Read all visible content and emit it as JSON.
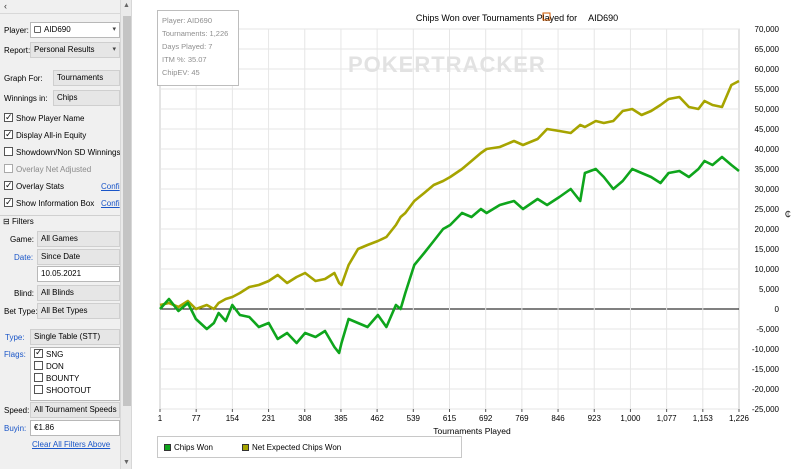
{
  "sidebar": {
    "player_label": "Player:",
    "player_value": "AID690",
    "report_label": "Report:",
    "report_value": "Personal Results",
    "graph_for_label": "Graph For:",
    "graph_for_value": "Tournaments",
    "winnings_in_label": "Winnings in:",
    "winnings_in_value": "Chips",
    "options": [
      {
        "label": "Show Player Name",
        "checked": true,
        "enabled": true
      },
      {
        "label": "Display All-in Equity",
        "checked": true,
        "enabled": true
      },
      {
        "label": "Showdown/Non SD Winnings",
        "checked": false,
        "enabled": true
      },
      {
        "label": "Overlay Net Adjusted",
        "checked": false,
        "enabled": false
      },
      {
        "label": "Overlay Stats",
        "checked": true,
        "enabled": true,
        "link": "Confi"
      },
      {
        "label": "Show Information Box",
        "checked": true,
        "enabled": true,
        "link": "Confi"
      }
    ],
    "filters_header": "Filters",
    "game_label": "Game:",
    "game_value": "All Games",
    "date_label": "Date:",
    "date_value": "Since Date",
    "date_input": "10.05.2021",
    "blind_label": "Blind:",
    "blind_value": "All Blinds",
    "bet_type_label": "Bet Type:",
    "bet_type_value": "All Bet Types",
    "type_label": "Type:",
    "type_value": "Single Table (STT)",
    "flags_label": "Flags:",
    "flags": [
      {
        "label": "SNG",
        "checked": true
      },
      {
        "label": "DON",
        "checked": false
      },
      {
        "label": "BOUNTY",
        "checked": false
      },
      {
        "label": "SHOOTOUT",
        "checked": false
      }
    ],
    "speed_label": "Speed:",
    "speed_value": "All Tournament Speeds",
    "buyin_label": "Buyin:",
    "buyin_value": "€1.86",
    "clear_filters": "Clear All Filters Above"
  },
  "info_box": {
    "lines": [
      "Player: AID690",
      "Tournaments: 1,226",
      "Days Played: 7",
      "ITM %: 35.07",
      "ChipEV: 45"
    ]
  },
  "watermark": "POKERTRACKER",
  "colors": {
    "chips_won": "#0ea51c",
    "net_expected": "#a6a400",
    "gridline": "#e6e6e6",
    "zero_line": "#000000"
  },
  "chart_data": {
    "type": "line",
    "title": "Chips Won over Tournaments Played for AID690",
    "title_icon": "player-icon",
    "xlabel": "Tournaments Played",
    "ylabel": "",
    "xlim": [
      1,
      1226
    ],
    "ylim": [
      -25000,
      70000
    ],
    "x_ticks": [
      "1",
      "77",
      "154",
      "231",
      "308",
      "385",
      "462",
      "539",
      "615",
      "692",
      "769",
      "846",
      "923",
      "1,000",
      "1,077",
      "1,153",
      "1,226"
    ],
    "y_ticks": [
      "70,000",
      "65,000",
      "60,000",
      "55,000",
      "50,000",
      "45,000",
      "40,000",
      "35,000",
      "30,000",
      "25,000",
      "20,000",
      "15,000",
      "10,000",
      "5,000",
      "0",
      "-5,000",
      "-10,000",
      "-15,000",
      "-20,000",
      "-25,000"
    ],
    "y_tick_values": [
      70000,
      65000,
      60000,
      55000,
      50000,
      45000,
      40000,
      35000,
      30000,
      25000,
      20000,
      15000,
      10000,
      5000,
      0,
      -5000,
      -10000,
      -15000,
      -20000,
      -25000
    ],
    "y_axis_symbol": "₵",
    "grid": true,
    "legend_position": "bottom-left",
    "series": [
      {
        "name": "Chips Won",
        "x": [
          1,
          20,
          40,
          60,
          77,
          100,
          115,
          125,
          140,
          154,
          170,
          190,
          210,
          231,
          250,
          270,
          290,
          308,
          330,
          350,
          370,
          380,
          385,
          400,
          420,
          440,
          462,
          480,
          500,
          510,
          520,
          539,
          560,
          580,
          600,
          615,
          640,
          660,
          680,
          692,
          720,
          750,
          769,
          800,
          820,
          846,
          870,
          890,
          900,
          923,
          940,
          960,
          980,
          1000,
          1020,
          1040,
          1060,
          1077,
          1100,
          1120,
          1140,
          1153,
          1170,
          1190,
          1210,
          1226
        ],
        "y": [
          0,
          2500,
          -500,
          1500,
          -2500,
          -5000,
          -3500,
          -1000,
          -3000,
          1000,
          -1500,
          -2000,
          -4500,
          -3500,
          -7500,
          -6000,
          -8500,
          -6000,
          -7000,
          -5500,
          -9500,
          -11000,
          -8500,
          -2500,
          -3500,
          -4500,
          -1500,
          -4500,
          1000,
          0,
          4000,
          11000,
          14000,
          17000,
          20000,
          21000,
          24000,
          23000,
          25000,
          24000,
          26000,
          27000,
          25000,
          27500,
          26000,
          28000,
          30000,
          27000,
          34000,
          35000,
          33000,
          30000,
          32000,
          35000,
          34000,
          33000,
          31500,
          34000,
          34500,
          33000,
          35000,
          37000,
          36000,
          38000,
          36000,
          34500
        ]
      },
      {
        "name": "Net Expected Chips Won",
        "x": [
          1,
          20,
          40,
          60,
          77,
          100,
          115,
          125,
          140,
          154,
          170,
          190,
          210,
          231,
          250,
          270,
          290,
          308,
          330,
          350,
          370,
          380,
          385,
          400,
          420,
          440,
          462,
          480,
          500,
          510,
          520,
          539,
          560,
          580,
          600,
          615,
          640,
          660,
          680,
          692,
          720,
          750,
          769,
          800,
          820,
          846,
          870,
          890,
          900,
          923,
          940,
          960,
          980,
          1000,
          1020,
          1040,
          1060,
          1077,
          1100,
          1120,
          1140,
          1153,
          1170,
          1190,
          1210,
          1226
        ],
        "y": [
          1000,
          1500,
          500,
          2000,
          0,
          1000,
          0,
          1500,
          2500,
          3000,
          4000,
          5500,
          6000,
          7000,
          8500,
          6500,
          8000,
          9000,
          7000,
          7500,
          9000,
          6500,
          6000,
          11000,
          15000,
          16000,
          17000,
          18000,
          21000,
          23000,
          24000,
          27000,
          29000,
          31000,
          32000,
          33000,
          35000,
          37000,
          39000,
          40000,
          40500,
          42000,
          41000,
          42500,
          45000,
          44500,
          44000,
          46000,
          45500,
          47000,
          46500,
          47000,
          49500,
          50000,
          48500,
          49500,
          51000,
          52500,
          53000,
          50500,
          50000,
          52000,
          51000,
          50500,
          56000,
          57000
        ]
      }
    ]
  }
}
